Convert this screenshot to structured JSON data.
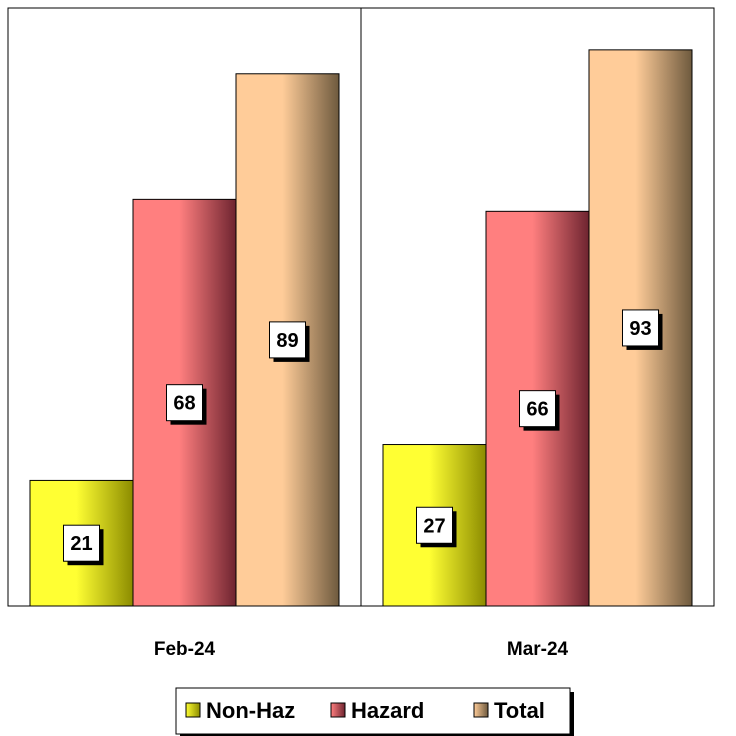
{
  "chart_data": {
    "type": "bar",
    "categories": [
      "Feb-24",
      "Mar-24"
    ],
    "series": [
      {
        "name": "Non-Haz",
        "values": [
          21,
          27
        ],
        "color_light": "#ffff33",
        "color_dark": "#8c8c00"
      },
      {
        "name": "Hazard",
        "values": [
          68,
          66
        ],
        "color_light": "#ff7f7f",
        "color_dark": "#6e2430"
      },
      {
        "name": "Total",
        "values": [
          89,
          93
        ],
        "color_light": "#ffcc99",
        "color_dark": "#6e5a3e"
      }
    ],
    "ylim": [
      0,
      100
    ],
    "grid": false,
    "legend_position": "bottom",
    "title": "",
    "xlabel": "",
    "ylabel": ""
  }
}
